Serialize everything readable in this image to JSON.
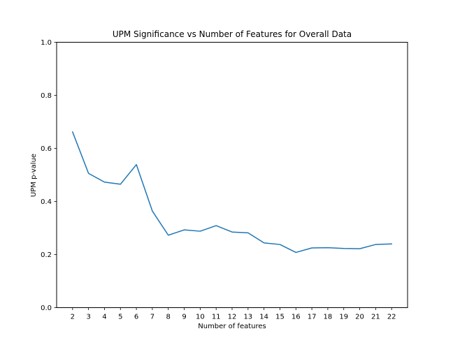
{
  "chart_data": {
    "type": "line",
    "title": "UPM Significance vs Number of Features for Overall Data",
    "xlabel": "Number of features",
    "ylabel": "UPM p-value",
    "ylim": [
      0.0,
      1.0
    ],
    "xlim": [
      1,
      23
    ],
    "yticks": [
      "0.0",
      "0.2",
      "0.4",
      "0.6",
      "0.8",
      "1.0"
    ],
    "x": [
      2,
      3,
      4,
      5,
      6,
      7,
      8,
      9,
      10,
      11,
      12,
      13,
      14,
      15,
      16,
      17,
      18,
      19,
      20,
      21,
      22
    ],
    "xtick_labels": [
      "2",
      "3",
      "4",
      "5",
      "6",
      "7",
      "8",
      "9",
      "10",
      "11",
      "12",
      "13",
      "14",
      "15",
      "16",
      "17",
      "18",
      "19",
      "20",
      "21",
      "22"
    ],
    "series": [
      {
        "color": "#1f77b4",
        "values": [
          0.662,
          0.506,
          0.473,
          0.465,
          0.539,
          0.364,
          0.273,
          0.293,
          0.288,
          0.309,
          0.285,
          0.282,
          0.244,
          0.238,
          0.208,
          0.225,
          0.226,
          0.223,
          0.222,
          0.238,
          0.24
        ]
      }
    ],
    "grid": false,
    "legend": "none"
  }
}
